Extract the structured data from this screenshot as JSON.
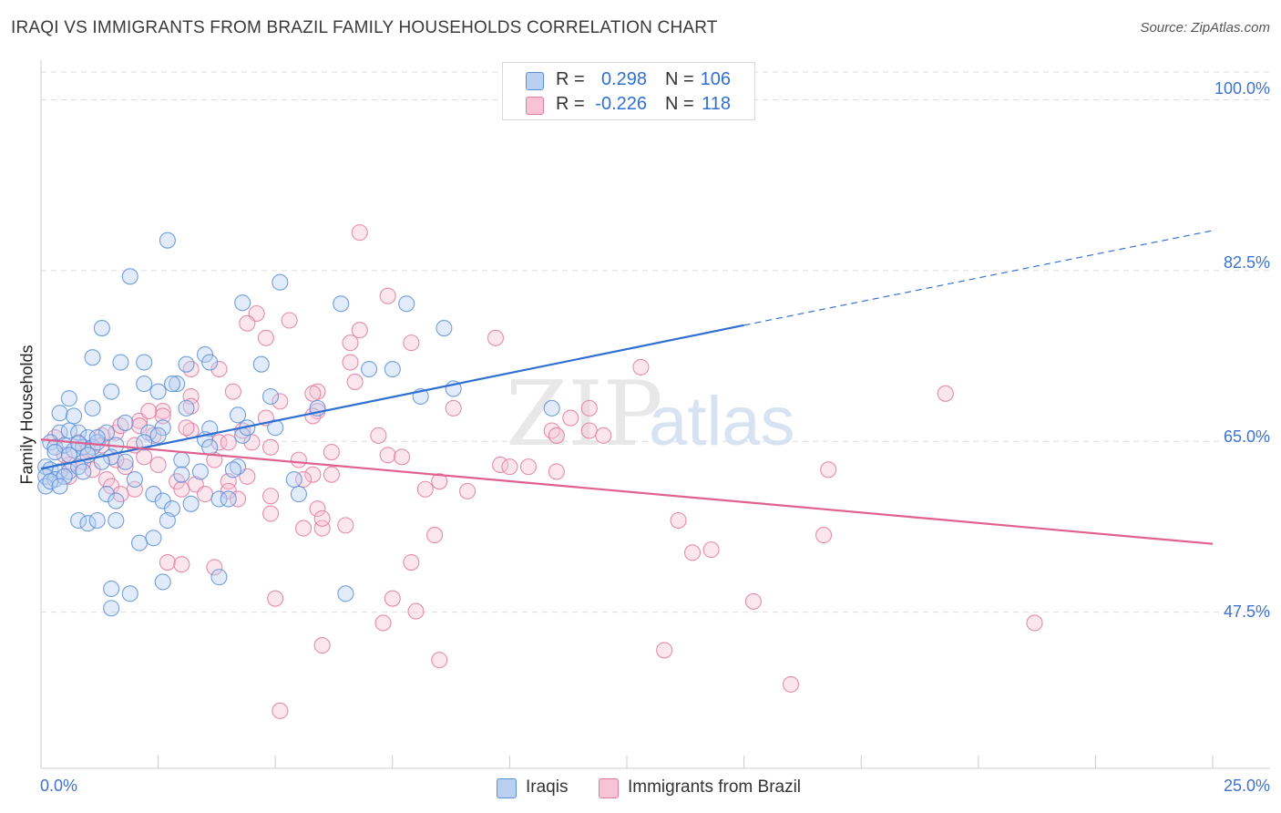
{
  "title": "IRAQI VS IMMIGRANTS FROM BRAZIL FAMILY HOUSEHOLDS CORRELATION CHART",
  "source": "Source: ZipAtlas.com",
  "watermark": {
    "zip": "ZIP",
    "atlas": "atlas"
  },
  "legend": {
    "r_label": "R =",
    "n_label": "N =",
    "rows": [
      {
        "r": "0.298",
        "n": "106"
      },
      {
        "r": "-0.226",
        "n": "118"
      }
    ]
  },
  "colors": {
    "iraqi": "#5b8fd8",
    "iraqi_fill": "#b9d0f0",
    "iraqi_line": "#2f6fd0",
    "brazil": "#e07aa0",
    "brazil_fill": "#f6c4d5",
    "brazil_line": "#e0608f",
    "tick_text": "#3d72cf",
    "grid": "#dddddd"
  },
  "chart_data": {
    "type": "scatter",
    "title": "IRAQI VS IMMIGRANTS FROM BRAZIL FAMILY HOUSEHOLDS CORRELATION CHART",
    "xlabel": "",
    "ylabel": "Family Households",
    "xlim": [
      0,
      25
    ],
    "ylim": [
      31.5,
      103.5
    ],
    "x_tick_labels": [
      "0.0%",
      "25.0%"
    ],
    "y_ticks": [
      47.5,
      65.0,
      82.5,
      100.0
    ],
    "y_tick_labels": [
      "47.5%",
      "65.0%",
      "82.5%",
      "100.0%"
    ],
    "grid": true,
    "legend_position": "top-center",
    "series": [
      {
        "name": "Iraqis",
        "r": 0.298,
        "n": 106,
        "trend": {
          "x": [
            0.0,
            15.0,
            25.0
          ],
          "y": [
            62.2,
            76.9,
            86.6
          ],
          "dashed_from_x": 15.0
        },
        "points": [
          [
            2.7,
            85.6
          ],
          [
            1.9,
            81.9
          ],
          [
            5.1,
            81.3
          ],
          [
            4.3,
            79.2
          ],
          [
            6.4,
            79.1
          ],
          [
            7.8,
            79.1
          ],
          [
            8.6,
            76.6
          ],
          [
            1.3,
            76.6
          ],
          [
            3.5,
            73.9
          ],
          [
            1.1,
            73.6
          ],
          [
            1.7,
            73.1
          ],
          [
            2.2,
            73.1
          ],
          [
            3.1,
            72.9
          ],
          [
            3.6,
            73.1
          ],
          [
            4.7,
            72.9
          ],
          [
            7.0,
            72.4
          ],
          [
            7.5,
            72.4
          ],
          [
            2.2,
            70.9
          ],
          [
            2.9,
            70.9
          ],
          [
            1.5,
            70.1
          ],
          [
            2.5,
            70.1
          ],
          [
            0.6,
            69.4
          ],
          [
            4.9,
            69.6
          ],
          [
            8.1,
            69.6
          ],
          [
            1.1,
            68.4
          ],
          [
            3.1,
            68.4
          ],
          [
            8.8,
            70.4
          ],
          [
            10.9,
            68.4
          ],
          [
            0.4,
            67.9
          ],
          [
            0.7,
            67.6
          ],
          [
            1.8,
            66.9
          ],
          [
            2.6,
            66.4
          ],
          [
            3.6,
            66.3
          ],
          [
            4.2,
            67.7
          ],
          [
            5.0,
            66.4
          ],
          [
            0.4,
            65.9
          ],
          [
            0.6,
            66.1
          ],
          [
            0.8,
            65.9
          ],
          [
            1.0,
            65.4
          ],
          [
            1.4,
            65.9
          ],
          [
            2.3,
            65.9
          ],
          [
            2.5,
            65.6
          ],
          [
            0.2,
            64.9
          ],
          [
            0.3,
            64.4
          ],
          [
            0.5,
            64.6
          ],
          [
            0.7,
            64.1
          ],
          [
            0.9,
            64.4
          ],
          [
            1.1,
            64.4
          ],
          [
            1.2,
            64.9
          ],
          [
            1.6,
            64.6
          ],
          [
            2.2,
            64.9
          ],
          [
            3.5,
            65.2
          ],
          [
            0.3,
            63.9
          ],
          [
            0.6,
            63.6
          ],
          [
            1.0,
            63.6
          ],
          [
            1.5,
            63.4
          ],
          [
            3.0,
            63.1
          ],
          [
            0.1,
            62.4
          ],
          [
            0.2,
            62.1
          ],
          [
            0.4,
            61.9
          ],
          [
            0.6,
            61.9
          ],
          [
            0.8,
            62.4
          ],
          [
            1.3,
            62.9
          ],
          [
            1.8,
            62.9
          ],
          [
            4.2,
            62.4
          ],
          [
            0.1,
            61.4
          ],
          [
            0.3,
            61.1
          ],
          [
            0.5,
            61.4
          ],
          [
            0.9,
            61.9
          ],
          [
            2.0,
            61.1
          ],
          [
            3.4,
            61.9
          ],
          [
            5.4,
            61.1
          ],
          [
            0.1,
            60.4
          ],
          [
            0.2,
            60.9
          ],
          [
            0.4,
            60.4
          ],
          [
            1.4,
            59.6
          ],
          [
            2.4,
            59.6
          ],
          [
            3.8,
            59.1
          ],
          [
            5.5,
            59.6
          ],
          [
            1.6,
            58.9
          ],
          [
            2.6,
            58.9
          ],
          [
            3.2,
            58.6
          ],
          [
            4.0,
            59.1
          ],
          [
            2.8,
            58.1
          ],
          [
            0.8,
            56.9
          ],
          [
            1.0,
            56.6
          ],
          [
            1.2,
            56.9
          ],
          [
            1.6,
            56.9
          ],
          [
            2.7,
            56.9
          ],
          [
            2.1,
            54.6
          ],
          [
            2.4,
            55.1
          ],
          [
            2.6,
            50.6
          ],
          [
            3.8,
            51.1
          ],
          [
            1.5,
            49.9
          ],
          [
            1.9,
            49.4
          ],
          [
            6.5,
            49.4
          ],
          [
            1.5,
            47.9
          ],
          [
            5.9,
            68.4
          ],
          [
            4.3,
            65.6
          ],
          [
            3.6,
            64.4
          ],
          [
            4.4,
            66.4
          ],
          [
            0.8,
            64.8
          ],
          [
            1.2,
            65.4
          ],
          [
            2.8,
            70.9
          ],
          [
            4.1,
            62.1
          ],
          [
            3.0,
            61.6
          ]
        ]
      },
      {
        "name": "Immigrants from Brazil",
        "r": -0.226,
        "n": 118,
        "trend": {
          "x": [
            0.0,
            25.0
          ],
          "y": [
            65.2,
            54.5
          ]
        },
        "points": [
          [
            6.8,
            86.4
          ],
          [
            7.4,
            79.9
          ],
          [
            4.6,
            78.1
          ],
          [
            4.4,
            77.1
          ],
          [
            5.3,
            77.4
          ],
          [
            6.8,
            76.4
          ],
          [
            4.8,
            75.6
          ],
          [
            6.6,
            75.1
          ],
          [
            7.9,
            75.1
          ],
          [
            9.7,
            75.6
          ],
          [
            6.6,
            73.1
          ],
          [
            3.2,
            72.4
          ],
          [
            3.8,
            72.4
          ],
          [
            12.8,
            72.6
          ],
          [
            6.7,
            71.1
          ],
          [
            4.1,
            70.1
          ],
          [
            5.9,
            70.1
          ],
          [
            3.2,
            69.6
          ],
          [
            5.8,
            69.9
          ],
          [
            19.3,
            69.9
          ],
          [
            5.1,
            69.1
          ],
          [
            2.6,
            68.1
          ],
          [
            3.2,
            68.6
          ],
          [
            5.9,
            68.1
          ],
          [
            5.8,
            67.6
          ],
          [
            8.8,
            68.4
          ],
          [
            11.3,
            67.4
          ],
          [
            11.7,
            68.4
          ],
          [
            2.1,
            67.1
          ],
          [
            2.6,
            67.6
          ],
          [
            4.8,
            67.4
          ],
          [
            2.1,
            66.6
          ],
          [
            3.2,
            66.1
          ],
          [
            4.3,
            66.1
          ],
          [
            10.9,
            66.1
          ],
          [
            11.7,
            66.1
          ],
          [
            12.0,
            65.6
          ],
          [
            1.3,
            65.6
          ],
          [
            1.6,
            65.9
          ],
          [
            2.4,
            65.6
          ],
          [
            4.5,
            64.9
          ],
          [
            7.2,
            65.6
          ],
          [
            11.0,
            65.6
          ],
          [
            0.3,
            65.4
          ],
          [
            0.8,
            64.9
          ],
          [
            1.3,
            64.6
          ],
          [
            3.8,
            64.9
          ],
          [
            4.0,
            64.9
          ],
          [
            4.9,
            64.4
          ],
          [
            7.4,
            63.6
          ],
          [
            7.7,
            63.4
          ],
          [
            6.2,
            63.9
          ],
          [
            0.6,
            62.6
          ],
          [
            1.1,
            62.1
          ],
          [
            1.8,
            62.4
          ],
          [
            2.5,
            62.6
          ],
          [
            9.8,
            62.6
          ],
          [
            10.0,
            62.4
          ],
          [
            10.4,
            62.4
          ],
          [
            11.0,
            61.9
          ],
          [
            16.8,
            62.1
          ],
          [
            0.6,
            61.4
          ],
          [
            1.4,
            61.1
          ],
          [
            2.9,
            60.9
          ],
          [
            3.3,
            60.6
          ],
          [
            4.0,
            60.9
          ],
          [
            5.8,
            61.6
          ],
          [
            6.2,
            61.6
          ],
          [
            8.5,
            60.9
          ],
          [
            1.5,
            60.4
          ],
          [
            2.0,
            60.1
          ],
          [
            3.0,
            60.1
          ],
          [
            4.0,
            59.9
          ],
          [
            8.2,
            60.1
          ],
          [
            9.1,
            59.9
          ],
          [
            1.7,
            59.6
          ],
          [
            3.5,
            59.6
          ],
          [
            4.2,
            59.1
          ],
          [
            4.9,
            59.4
          ],
          [
            5.9,
            58.1
          ],
          [
            4.9,
            57.6
          ],
          [
            5.6,
            56.1
          ],
          [
            6.0,
            56.1
          ],
          [
            6.5,
            56.4
          ],
          [
            13.6,
            56.9
          ],
          [
            16.7,
            55.4
          ],
          [
            8.4,
            55.4
          ],
          [
            13.9,
            53.6
          ],
          [
            14.3,
            53.9
          ],
          [
            2.7,
            52.6
          ],
          [
            3.0,
            52.4
          ],
          [
            3.7,
            52.1
          ],
          [
            7.9,
            52.6
          ],
          [
            5.0,
            48.9
          ],
          [
            7.5,
            48.9
          ],
          [
            8.0,
            47.6
          ],
          [
            15.2,
            48.6
          ],
          [
            7.3,
            46.4
          ],
          [
            21.2,
            46.4
          ],
          [
            6.0,
            44.1
          ],
          [
            13.3,
            43.6
          ],
          [
            8.5,
            42.6
          ],
          [
            16.0,
            40.1
          ],
          [
            5.1,
            37.4
          ],
          [
            1.0,
            64.1
          ],
          [
            2.2,
            63.4
          ],
          [
            0.5,
            63.6
          ],
          [
            3.7,
            63.1
          ],
          [
            5.6,
            61.1
          ],
          [
            4.4,
            61.4
          ],
          [
            6.0,
            57.1
          ],
          [
            2.0,
            64.6
          ],
          [
            1.6,
            63.1
          ],
          [
            0.9,
            62.9
          ],
          [
            3.1,
            66.4
          ],
          [
            5.5,
            63.1
          ],
          [
            1.7,
            66.6
          ],
          [
            2.3,
            68.1
          ]
        ]
      }
    ]
  },
  "axis": {
    "ylabel": "Family Households",
    "x_left": "0.0%",
    "x_right": "25.0%",
    "y_ticks": [
      {
        "value": 100.0,
        "label": "100.0%"
      },
      {
        "value": 82.5,
        "label": "82.5%"
      },
      {
        "value": 65.0,
        "label": "65.0%"
      },
      {
        "value": 47.5,
        "label": "47.5%"
      }
    ]
  }
}
